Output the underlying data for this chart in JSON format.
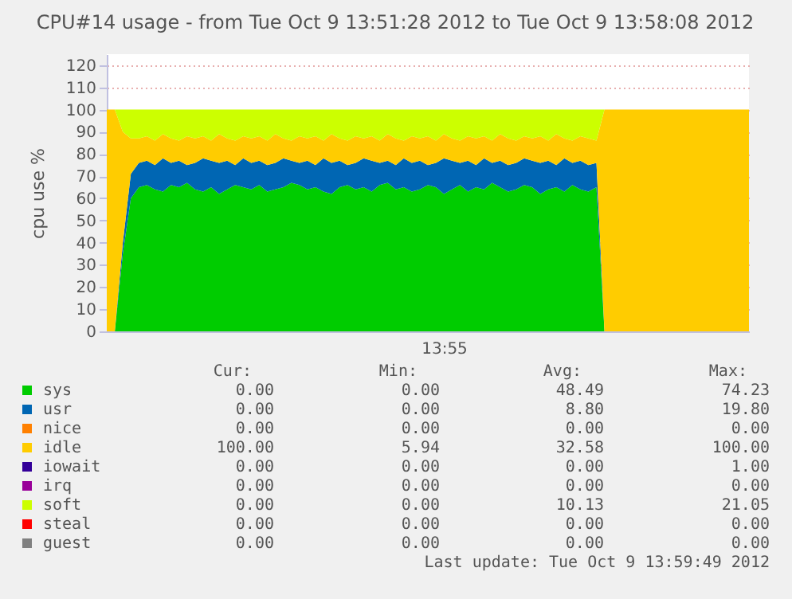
{
  "chart_data": {
    "type": "area",
    "stacked": true,
    "title": "CPU#14 usage - from Tue Oct  9 13:51:28 2012 to Tue Oct  9 13:58:08 2012",
    "ylabel": "cpu use %",
    "categories": [
      null,
      null,
      null,
      null,
      null,
      null,
      null,
      null,
      null,
      null,
      null,
      null,
      null,
      null,
      null,
      null,
      null,
      null,
      null,
      null,
      null,
      null,
      null,
      null,
      null,
      null,
      null,
      null,
      null,
      null,
      null,
      null,
      null,
      null,
      null,
      null,
      null,
      null,
      null,
      null,
      null,
      null,
      null,
      null,
      null,
      null,
      null,
      null,
      null,
      null,
      null,
      null,
      null,
      null,
      null,
      null,
      null,
      null,
      null,
      null,
      null,
      null,
      null,
      null,
      null,
      null,
      null,
      null,
      null,
      null,
      null,
      null,
      null,
      null,
      null,
      null,
      null,
      null,
      null,
      null,
      null
    ],
    "series": [
      {
        "name": "sys",
        "color": "#00cc00",
        "values": [
          0,
          0,
          35,
          60,
          65,
          66,
          64,
          63,
          66,
          65,
          67,
          64,
          63,
          65,
          62,
          64,
          66,
          65,
          64,
          66,
          63,
          64,
          65,
          67,
          66,
          64,
          65,
          63,
          62,
          65,
          66,
          64,
          65,
          63,
          66,
          67,
          64,
          65,
          63,
          64,
          66,
          65,
          62,
          64,
          66,
          63,
          65,
          64,
          67,
          65,
          63,
          64,
          66,
          65,
          62,
          64,
          65,
          63,
          66,
          64,
          63,
          65,
          0,
          0,
          0,
          0,
          0,
          0,
          0,
          0,
          0,
          0,
          0,
          0,
          0,
          0,
          0,
          0,
          0,
          0,
          0
        ]
      },
      {
        "name": "usr",
        "color": "#0066b3",
        "values": [
          0,
          0,
          5,
          11,
          11,
          11,
          11,
          15,
          10,
          12,
          8,
          12,
          15,
          12,
          14,
          13,
          9,
          13,
          12,
          11,
          12,
          12,
          13,
          10,
          10,
          13,
          10,
          15,
          14,
          12,
          9,
          12,
          13,
          14,
          10,
          10,
          11,
          13,
          13,
          13,
          9,
          11,
          16,
          13,
          10,
          14,
          10,
          14,
          9,
          12,
          12,
          12,
          12,
          12,
          14,
          13,
          10,
          15,
          10,
          13,
          12,
          11,
          0,
          0,
          0,
          0,
          0,
          0,
          0,
          0,
          0,
          0,
          0,
          0,
          0,
          0,
          0,
          0,
          0,
          0,
          0
        ]
      },
      {
        "name": "nice",
        "color": "#ff8000",
        "values": [
          null,
          null,
          null,
          null,
          null,
          null,
          null,
          null,
          null,
          null,
          null,
          null,
          null,
          null,
          null,
          null,
          null,
          null,
          null,
          null,
          null,
          null,
          null,
          null,
          null,
          null,
          null,
          null,
          null,
          null,
          null,
          null,
          null,
          null,
          null,
          null,
          null,
          null,
          null,
          null,
          null,
          null,
          null,
          null,
          null,
          null,
          null,
          null,
          null,
          null,
          null,
          null,
          null,
          null,
          null,
          null,
          null,
          null,
          null,
          null,
          null,
          null,
          null,
          null,
          null,
          null,
          null,
          null,
          null,
          null,
          null,
          null,
          null,
          null,
          null,
          null,
          null,
          null,
          null,
          null,
          null
        ]
      },
      {
        "name": "idle",
        "color": "#ffcc00",
        "values": [
          100,
          100,
          50,
          16,
          11,
          11,
          11,
          11,
          11,
          9,
          13,
          11,
          10,
          9,
          13,
          10,
          11,
          10,
          11,
          11,
          11,
          13,
          9,
          9,
          12,
          10,
          13,
          8,
          13,
          10,
          11,
          12,
          9,
          11,
          10,
          12,
          12,
          8,
          12,
          10,
          13,
          10,
          11,
          10,
          10,
          11,
          12,
          10,
          10,
          12,
          12,
          10,
          10,
          10,
          12,
          9,
          14,
          9,
          10,
          11,
          12,
          10,
          100,
          100,
          100,
          100,
          100,
          100,
          100,
          100,
          100,
          100,
          100,
          100,
          100,
          100,
          100,
          100,
          100,
          100,
          100
        ]
      },
      {
        "name": "iowait",
        "color": "#330099",
        "values": [
          null,
          null,
          null,
          null,
          null,
          null,
          null,
          null,
          null,
          null,
          null,
          null,
          null,
          null,
          null,
          null,
          null,
          null,
          null,
          null,
          null,
          null,
          null,
          null,
          null,
          null,
          null,
          null,
          null,
          null,
          null,
          null,
          null,
          null,
          null,
          null,
          null,
          null,
          null,
          null,
          null,
          null,
          null,
          null,
          null,
          null,
          null,
          null,
          null,
          null,
          null,
          null,
          null,
          null,
          null,
          null,
          null,
          null,
          null,
          null,
          null,
          null,
          null,
          null,
          null,
          null,
          null,
          null,
          null,
          null,
          null,
          null,
          null,
          null,
          null,
          null,
          null,
          null,
          null,
          null,
          null
        ]
      },
      {
        "name": "irq",
        "color": "#990099",
        "values": [
          null,
          null,
          null,
          null,
          null,
          null,
          null,
          null,
          null,
          null,
          null,
          null,
          null,
          null,
          null,
          null,
          null,
          null,
          null,
          null,
          null,
          null,
          null,
          null,
          null,
          null,
          null,
          null,
          null,
          null,
          null,
          null,
          null,
          null,
          null,
          null,
          null,
          null,
          null,
          null,
          null,
          null,
          null,
          null,
          null,
          null,
          null,
          null,
          null,
          null,
          null,
          null,
          null,
          null,
          null,
          null,
          null,
          null,
          null,
          null,
          null,
          null,
          null,
          null,
          null,
          null,
          null,
          null,
          null,
          null,
          null,
          null,
          null,
          null,
          null,
          null,
          null,
          null,
          null,
          null,
          null
        ]
      },
      {
        "name": "soft",
        "color": "#ccff00",
        "values": [
          0,
          0,
          10,
          13,
          13,
          12,
          14,
          11,
          13,
          14,
          12,
          13,
          12,
          14,
          11,
          13,
          14,
          12,
          13,
          12,
          14,
          11,
          13,
          14,
          12,
          13,
          12,
          14,
          11,
          13,
          14,
          12,
          13,
          12,
          14,
          11,
          13,
          14,
          12,
          13,
          12,
          14,
          11,
          13,
          14,
          12,
          13,
          12,
          14,
          11,
          13,
          14,
          12,
          13,
          12,
          14,
          11,
          13,
          14,
          12,
          13,
          14,
          0,
          0,
          0,
          0,
          0,
          0,
          0,
          0,
          0,
          0,
          0,
          0,
          0,
          0,
          0,
          0,
          0,
          0,
          0
        ]
      },
      {
        "name": "steal",
        "color": "#ff0000",
        "values": [
          null,
          null,
          null,
          null,
          null,
          null,
          null,
          null,
          null,
          null,
          null,
          null,
          null,
          null,
          null,
          null,
          null,
          null,
          null,
          null,
          null,
          null,
          null,
          null,
          null,
          null,
          null,
          null,
          null,
          null,
          null,
          null,
          null,
          null,
          null,
          null,
          null,
          null,
          null,
          null,
          null,
          null,
          null,
          null,
          null,
          null,
          null,
          null,
          null,
          null,
          null,
          null,
          null,
          null,
          null,
          null,
          null,
          null,
          null,
          null,
          null,
          null,
          null,
          null,
          null,
          null,
          null,
          null,
          null,
          null,
          null,
          null,
          null,
          null,
          null,
          null,
          null,
          null,
          null,
          null,
          null
        ]
      },
      {
        "name": "guest",
        "color": "#808080",
        "values": [
          null,
          null,
          null,
          null,
          null,
          null,
          null,
          null,
          null,
          null,
          null,
          null,
          null,
          null,
          null,
          null,
          null,
          null,
          null,
          null,
          null,
          null,
          null,
          null,
          null,
          null,
          null,
          null,
          null,
          null,
          null,
          null,
          null,
          null,
          null,
          null,
          null,
          null,
          null,
          null,
          null,
          null,
          null,
          null,
          null,
          null,
          null,
          null,
          null,
          null,
          null,
          null,
          null,
          null,
          null,
          null,
          null,
          null,
          null,
          null,
          null,
          null,
          null,
          null,
          null,
          null,
          null,
          null,
          null,
          null,
          null,
          null,
          null,
          null,
          null,
          null,
          null,
          null,
          null,
          null,
          null
        ]
      }
    ],
    "ylim": [
      0,
      125
    ],
    "yticks": [
      0,
      10,
      20,
      30,
      40,
      50,
      60,
      70,
      80,
      90,
      100,
      110,
      120
    ],
    "grid": "y",
    "legend": "bottom",
    "annotations": [
      "Cur:",
      "Min:",
      "Avg:",
      "Max:",
      "0.00",
      "0.00",
      "48.49",
      "74.23",
      "0.00",
      "0.00",
      "8.80",
      "19.80",
      "0.00",
      "0.00",
      "0.00",
      "0.00",
      "100.00",
      "5.94",
      "32.58",
      "100.00",
      "0.00",
      "0.00",
      "0.00",
      "1.00",
      "0.00",
      "0.00",
      "0.00",
      "0.00",
      "0.00",
      "0.00",
      "10.13",
      "21.05",
      "0.00",
      "0.00",
      "0.00",
      "0.00",
      "0.00",
      "0.00",
      "0.00",
      "0.00",
      "Last update: Tue Oct  9 13:59:49 2012",
      "13:55"
    ]
  }
}
